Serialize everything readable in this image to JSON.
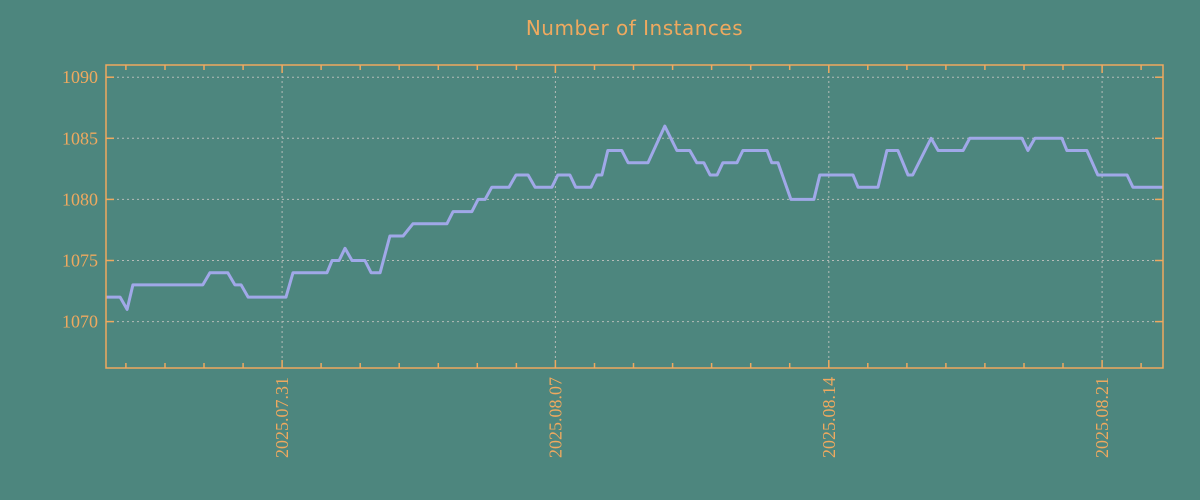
{
  "colors": {
    "background": "#4d867e",
    "accent_orange": "#efa95f",
    "line": "#a0a8e8",
    "grid": "#b4bcb8"
  },
  "chart_data": {
    "type": "line",
    "title": "Number of Instances",
    "legend": "none",
    "grid": "dotted",
    "x_axis": {
      "unit": "date",
      "tick_labels": [
        "2025.07.31",
        "2025.08.07",
        "2025.08.14",
        "2025.08.21"
      ],
      "tick_positions_days": [
        4.51,
        11.51,
        18.51,
        25.51
      ],
      "minor_first_tick_day": 0.51,
      "minor_tick_interval_days": 1,
      "minor_tick_count": 27,
      "tick_label_rotated": true,
      "range_days": [
        0,
        27.07
      ]
    },
    "y_axis": {
      "tick_labels": [
        "1070",
        "1075",
        "1080",
        "1085",
        "1090"
      ],
      "tick_values": [
        1070,
        1075,
        1080,
        1085,
        1090
      ],
      "range": [
        1066.2,
        1091.0
      ]
    },
    "series": [
      {
        "name": "instances",
        "points": [
          [
            0.0,
            1072
          ],
          [
            0.36,
            1072
          ],
          [
            0.54,
            1071
          ],
          [
            0.69,
            1073
          ],
          [
            2.48,
            1073
          ],
          [
            2.66,
            1074
          ],
          [
            3.12,
            1074
          ],
          [
            3.3,
            1073
          ],
          [
            3.46,
            1073
          ],
          [
            3.64,
            1072
          ],
          [
            4.61,
            1072
          ],
          [
            4.79,
            1074
          ],
          [
            5.66,
            1074
          ],
          [
            5.79,
            1075
          ],
          [
            5.97,
            1075
          ],
          [
            6.12,
            1076
          ],
          [
            6.3,
            1075
          ],
          [
            6.63,
            1075
          ],
          [
            6.79,
            1074
          ],
          [
            7.02,
            1074
          ],
          [
            7.27,
            1077
          ],
          [
            7.61,
            1077
          ],
          [
            7.86,
            1078
          ],
          [
            8.73,
            1078
          ],
          [
            8.89,
            1079
          ],
          [
            9.37,
            1079
          ],
          [
            9.53,
            1080
          ],
          [
            9.71,
            1080
          ],
          [
            9.88,
            1081
          ],
          [
            10.32,
            1081
          ],
          [
            10.5,
            1082
          ],
          [
            10.81,
            1082
          ],
          [
            10.99,
            1081
          ],
          [
            11.42,
            1081
          ],
          [
            11.57,
            1082
          ],
          [
            11.88,
            1082
          ],
          [
            12.03,
            1081
          ],
          [
            12.42,
            1081
          ],
          [
            12.57,
            1082
          ],
          [
            12.7,
            1082
          ],
          [
            12.85,
            1084
          ],
          [
            13.21,
            1084
          ],
          [
            13.37,
            1083
          ],
          [
            13.88,
            1083
          ],
          [
            14.31,
            1086
          ],
          [
            14.62,
            1084
          ],
          [
            14.95,
            1084
          ],
          [
            15.13,
            1083
          ],
          [
            15.31,
            1083
          ],
          [
            15.47,
            1082
          ],
          [
            15.65,
            1082
          ],
          [
            15.8,
            1083
          ],
          [
            16.16,
            1083
          ],
          [
            16.31,
            1084
          ],
          [
            16.93,
            1084
          ],
          [
            17.05,
            1083
          ],
          [
            17.21,
            1083
          ],
          [
            17.54,
            1080
          ],
          [
            18.13,
            1080
          ],
          [
            18.28,
            1082
          ],
          [
            19.13,
            1082
          ],
          [
            19.26,
            1081
          ],
          [
            19.77,
            1081
          ],
          [
            20.0,
            1084
          ],
          [
            20.28,
            1084
          ],
          [
            20.54,
            1082
          ],
          [
            20.66,
            1082
          ],
          [
            21.13,
            1085
          ],
          [
            21.31,
            1084
          ],
          [
            21.95,
            1084
          ],
          [
            22.12,
            1085
          ],
          [
            23.46,
            1085
          ],
          [
            23.61,
            1084
          ],
          [
            23.79,
            1085
          ],
          [
            24.48,
            1085
          ],
          [
            24.61,
            1084
          ],
          [
            25.12,
            1084
          ],
          [
            25.4,
            1082
          ],
          [
            26.15,
            1082
          ],
          [
            26.3,
            1081
          ],
          [
            27.07,
            1081
          ]
        ]
      }
    ]
  }
}
